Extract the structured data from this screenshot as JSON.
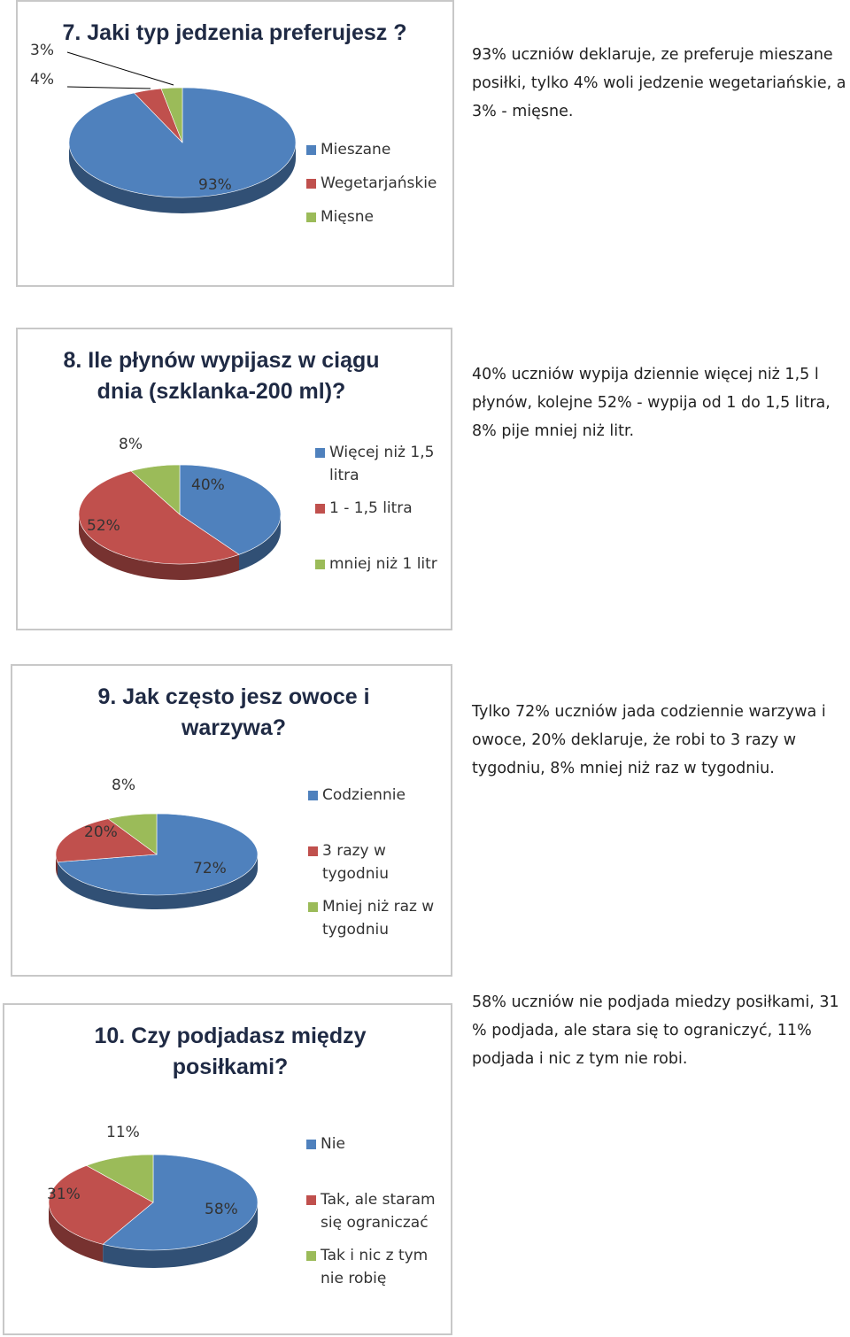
{
  "colors": {
    "blue": "#4f81bd",
    "red": "#c0504d",
    "green": "#9bbb59"
  },
  "chart_data": [
    {
      "type": "pie",
      "title": "7. Jaki typ jedzenia preferujesz ?",
      "categories": [
        "Mieszane",
        "Wegetarjańskie",
        "Mięsne"
      ],
      "values": [
        93,
        4,
        3
      ],
      "value_labels": [
        "93%",
        "4%",
        "3%"
      ],
      "legend_position": "right",
      "description": "93% uczniów deklaruje, ze preferuje mieszane posiłki, tylko 4% woli jedzenie wegetariańskie, a 3% - mięsne."
    },
    {
      "type": "pie",
      "title": "8. Ile płynów wypijasz w ciągu dnia (szklanka-200 ml)?",
      "categories": [
        "Więcej niż 1,5 litra",
        "1 - 1,5 litra",
        "mniej niż 1 litr"
      ],
      "values": [
        40,
        52,
        8
      ],
      "value_labels": [
        "40%",
        "52%",
        "8%"
      ],
      "legend_position": "right",
      "description": "40% uczniów wypija dziennie więcej niż 1,5 l płynów, kolejne 52% - wypija od 1 do 1,5 litra, 8% pije mniej niż litr."
    },
    {
      "type": "pie",
      "title": "9. Jak często jesz owoce i warzywa?",
      "categories": [
        "Codziennie",
        "3 razy w tygodniu",
        "Mniej niż raz w tygodniu"
      ],
      "values": [
        72,
        20,
        8
      ],
      "value_labels": [
        "72%",
        "20%",
        "8%"
      ],
      "legend_position": "right",
      "description": "Tylko 72% uczniów jada codziennie warzywa i owoce, 20% deklaruje, że robi to 3 razy w tygodniu, 8% mniej niż raz w tygodniu."
    },
    {
      "type": "pie",
      "title": "10. Czy podjadasz między posiłkami?",
      "categories": [
        "Nie",
        "Tak, ale staram się ograniczać",
        "Tak i nic z tym nie robię"
      ],
      "values": [
        58,
        31,
        11
      ],
      "value_labels": [
        "58%",
        "31%",
        "11%"
      ],
      "legend_position": "right",
      "description": "58% uczniów nie podjada miedzy posiłkami, 31 % podjada, ale stara się to ograniczyć, 11% podjada i nic z tym nie robi."
    }
  ]
}
